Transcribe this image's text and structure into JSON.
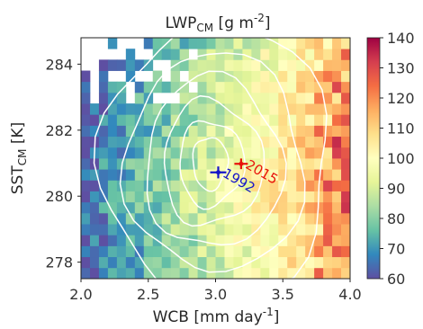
{
  "chart_data": {
    "type": "heatmap",
    "title": {
      "main": "LWP",
      "sub": "CM",
      "unit_pre": " [g m",
      "unit_sup": "-2",
      "unit_post": "]"
    },
    "xlabel": {
      "main": "WCB [mm day",
      "sup": "-1",
      "post": "]"
    },
    "ylabel": {
      "main": "SST",
      "sub": "CM",
      "post": " [K]"
    },
    "xlim": [
      2.0,
      4.0
    ],
    "ylim": [
      277.5,
      284.8
    ],
    "x_ticks": [
      2.0,
      2.5,
      3.0,
      3.5,
      4.0
    ],
    "x_tick_labels": [
      "2.0",
      "2.5",
      "3.0",
      "3.5",
      "4.0"
    ],
    "y_ticks": [
      278,
      280,
      282,
      284
    ],
    "y_tick_labels": [
      "278",
      "280",
      "282",
      "284"
    ],
    "grid": false,
    "colormap": "Spectral_r",
    "colorbar": {
      "vmin": 60,
      "vmax": 140,
      "ticks": [
        60,
        70,
        80,
        90,
        100,
        110,
        120,
        130,
        140
      ],
      "tick_labels": [
        "60",
        "70",
        "80",
        "90",
        "100",
        "110",
        "120",
        "130",
        "140"
      ]
    },
    "heatmap_model": {
      "description_units": "LWP increases from ~65 at WCB 2.0 to ~125 at WCB 4.0, slightly higher near SST 280",
      "grid_x": 30,
      "grid_y": 22,
      "x_cells_span": [
        2.0,
        4.0
      ],
      "y_cells_span": [
        277.5,
        284.8
      ]
    },
    "contours": {
      "color": "#ffffff",
      "center": {
        "x": 2.95,
        "y": 281.0
      },
      "levels_radii_x": [
        0.14,
        0.26,
        0.4,
        0.55,
        0.72,
        0.92
      ],
      "levels_radii_y": [
        0.8,
        1.3,
        1.9,
        2.6,
        3.3,
        4.2
      ]
    },
    "points": [
      {
        "label": "1992",
        "x": 3.02,
        "y": 280.72,
        "xerr": 0.06,
        "yerr": 0.18,
        "color": "#1515c8"
      },
      {
        "label": "2015",
        "x": 3.19,
        "y": 280.98,
        "xerr": 0.05,
        "yerr": 0.16,
        "color": "#e8130b"
      }
    ]
  }
}
